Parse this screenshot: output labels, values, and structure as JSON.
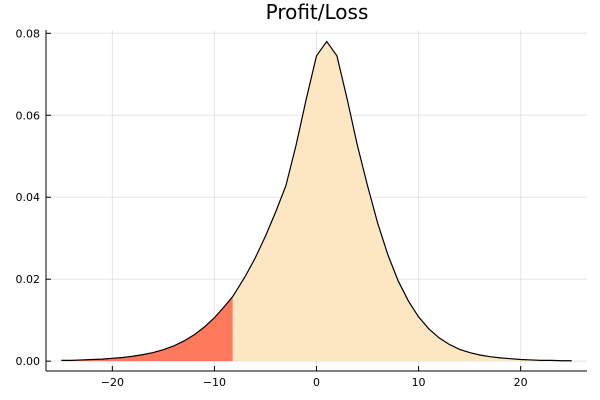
{
  "chart_data": {
    "type": "area",
    "title": "Profit/Loss",
    "xlabel": "",
    "ylabel": "",
    "xlim": [
      -26.5,
      26.5
    ],
    "ylim": [
      -0.0024,
      0.0808
    ],
    "x_ticks": [
      -20,
      -10,
      0,
      10,
      20
    ],
    "x_tick_labels": [
      "−20",
      "−10",
      "0",
      "10",
      "20"
    ],
    "y_ticks": [
      0.0,
      0.02,
      0.04,
      0.06,
      0.08
    ],
    "y_tick_labels": [
      "0.00",
      "0.02",
      "0.04",
      "0.06",
      "0.08"
    ],
    "grid": true,
    "legend": false,
    "shaded_regions": [
      {
        "x_range": [
          -25,
          -8.2
        ],
        "color": "#ff7a5c"
      },
      {
        "x_range": [
          -8.2,
          25
        ],
        "color": "#fde6c2"
      }
    ],
    "curve_color": "#000000",
    "series": [
      {
        "x": [
          -25,
          -24,
          -23,
          -22,
          -21,
          -20,
          -19,
          -18,
          -17,
          -16,
          -15,
          -14,
          -13,
          -12,
          -11,
          -10,
          -9,
          -8.2,
          -8,
          -7,
          -6,
          -5,
          -4,
          -3,
          -2,
          -1,
          0,
          1,
          2,
          3,
          4,
          5,
          6,
          7,
          8,
          9,
          10,
          11,
          12,
          13,
          14,
          15,
          16,
          17,
          18,
          19,
          20,
          21,
          22,
          23,
          24,
          25
        ],
        "y": [
          0.0002,
          0.0002,
          0.0003,
          0.0004,
          0.0005,
          0.0007,
          0.0009,
          0.0012,
          0.0016,
          0.0021,
          0.0028,
          0.0037,
          0.0049,
          0.0064,
          0.0083,
          0.0106,
          0.0134,
          0.0158,
          0.0166,
          0.0206,
          0.0252,
          0.0305,
          0.0364,
          0.0428,
          0.0527,
          0.064,
          0.0745,
          0.078,
          0.0745,
          0.064,
          0.0527,
          0.0428,
          0.0336,
          0.0259,
          0.0196,
          0.0147,
          0.0108,
          0.0079,
          0.0057,
          0.0041,
          0.0029,
          0.0021,
          0.0015,
          0.0011,
          0.0008,
          0.0006,
          0.0004,
          0.0003,
          0.0002,
          0.0002,
          0.0001,
          0.0001
        ]
      }
    ]
  }
}
